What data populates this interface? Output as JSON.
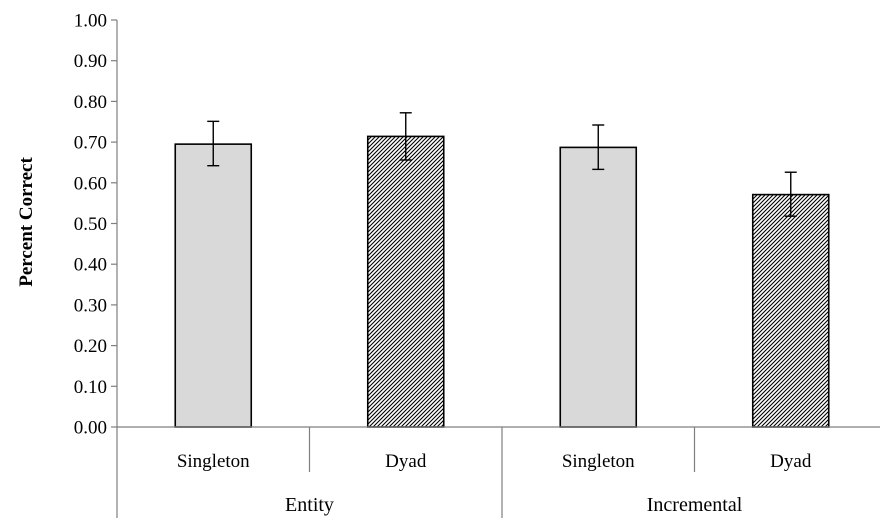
{
  "chart_data": {
    "type": "bar",
    "ylabel": "Percent Correct",
    "xlabel": "",
    "ylim": [
      0,
      1.0
    ],
    "y_ticks": [
      "0.00",
      "0.10",
      "0.20",
      "0.30",
      "0.40",
      "0.50",
      "0.60",
      "0.70",
      "0.80",
      "0.90",
      "1.00"
    ],
    "groups": [
      "Entity",
      "Incremental"
    ],
    "categories": [
      "Singleton",
      "Dyad",
      "Singleton",
      "Dyad"
    ],
    "group_of_category": [
      0,
      0,
      1,
      1
    ],
    "values": [
      0.695,
      0.714,
      0.687,
      0.571
    ],
    "error_low": [
      0.642,
      0.656,
      0.633,
      0.518
    ],
    "error_high": [
      0.751,
      0.772,
      0.742,
      0.626
    ],
    "fills": [
      "solid-gray",
      "hatched",
      "solid-gray",
      "hatched"
    ],
    "colors": {
      "bar_gray": "#d9d9d9",
      "outline": "#000000",
      "axis": "#7f7f7f"
    },
    "legend": "none",
    "grid": false
  }
}
